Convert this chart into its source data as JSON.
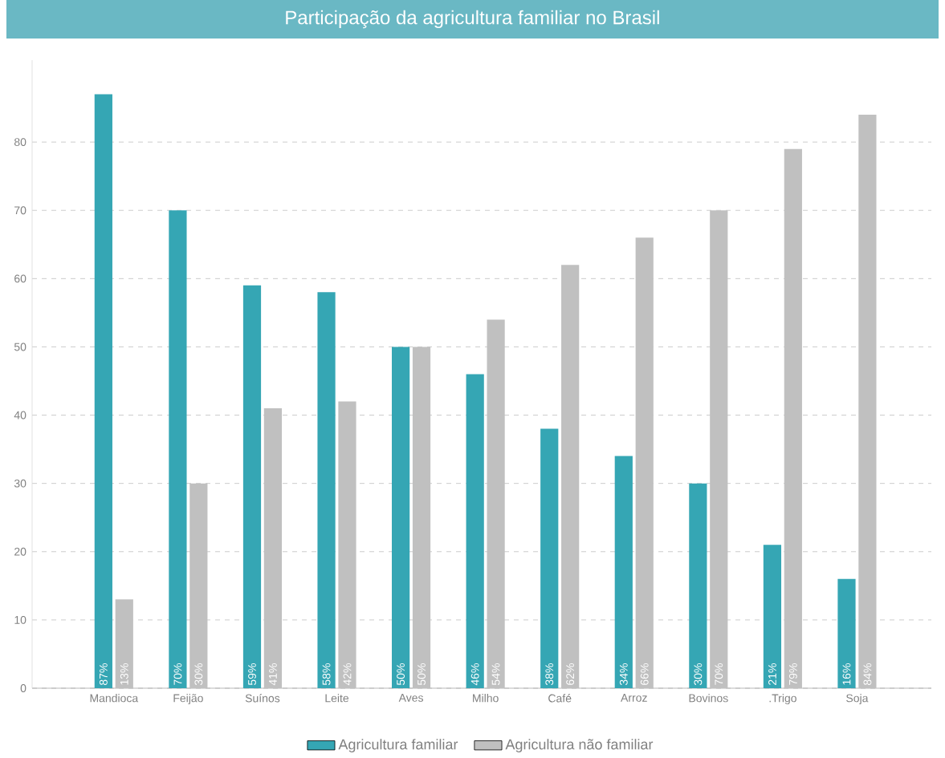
{
  "chart_data": {
    "type": "bar",
    "title": "Participação da agricultura familiar no Brasil",
    "categories": [
      "Mandioca",
      "Feijão",
      "Suínos",
      "Leite",
      "Aves",
      "Milho",
      "Café",
      "Arroz",
      "Bovinos",
      ".Trigo",
      "Soja"
    ],
    "series": [
      {
        "name": "Agricultura familiar",
        "color": "#35a6b4",
        "values": [
          87,
          70,
          59,
          58,
          50,
          46,
          38,
          34,
          30,
          21,
          16
        ],
        "value_labels": [
          "87%",
          "70%",
          "59%",
          "58%",
          "50%",
          "46%",
          "38%",
          "34%",
          "30%",
          "21%",
          "16%"
        ]
      },
      {
        "name": "Agricultura não familiar",
        "color": "#c0c0c0",
        "values": [
          13,
          30,
          41,
          42,
          50,
          54,
          62,
          66,
          70,
          79,
          84
        ],
        "value_labels": [
          "13%",
          "30%",
          "41%",
          "42%",
          "50%",
          "54%",
          "62%",
          "66%",
          "70%",
          "79%",
          "84%"
        ]
      }
    ],
    "ylim": [
      0,
      92
    ],
    "yticks": [
      0,
      10,
      20,
      30,
      40,
      50,
      60,
      70,
      80
    ],
    "grid": "y",
    "legend": "bottom"
  }
}
